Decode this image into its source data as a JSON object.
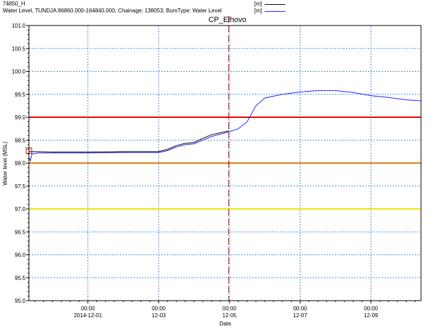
{
  "legend": {
    "entries": [
      {
        "name": "74850_H",
        "unit": "[m]",
        "color": "#000000"
      },
      {
        "name": "Water Level, TUNDJA 86860.000-164840.000; Chainage: 138053; BumType: Water Level",
        "unit": "[m]",
        "color": "#2020ff"
      }
    ]
  },
  "chart_data": {
    "type": "line",
    "title": "CP_Elhovo",
    "xlabel": "Date",
    "ylabel": "Water level (MSL)",
    "ylim": [
      95.0,
      101.0
    ],
    "xlim": [
      "2014-11-29T08:00",
      "2014-12-10T10:00"
    ],
    "y_ticks": [
      "95.0",
      "95.5",
      "96.0",
      "96.5",
      "97.0",
      "97.5",
      "98.0",
      "98.5",
      "99.0",
      "99.5",
      "100.0",
      "100.5",
      "101.0"
    ],
    "x_ticks": [
      {
        "x": "2014-12-01T00:00",
        "time": "00:00",
        "date": "2014-12-01"
      },
      {
        "x": "2014-12-03T00:00",
        "time": "00:00",
        "date": "12-03"
      },
      {
        "x": "2014-12-05T00:00",
        "time": "00:00",
        "date": "12-05"
      },
      {
        "x": "2014-12-07T00:00",
        "time": "00:00",
        "date": "12-07"
      },
      {
        "x": "2014-12-09T00:00",
        "time": "00:00",
        "date": "12-09"
      }
    ],
    "grid": true,
    "threshold_lines": [
      {
        "y": 99.0,
        "color": "#e00000"
      },
      {
        "y": 98.0,
        "color": "#e07000"
      },
      {
        "y": 97.0,
        "color": "#e8e800"
      }
    ],
    "current_time_marker": {
      "x": "2014-12-04T23:30",
      "color": "#d00000"
    },
    "series": [
      {
        "name": "74850_H",
        "color": "#000000",
        "points": [
          [
            "2014-11-29T08:00",
            98.25
          ],
          [
            "2014-11-29T12:00",
            98.25
          ],
          [
            "2014-11-30T00:00",
            98.24
          ],
          [
            "2014-12-01T00:00",
            98.24
          ],
          [
            "2014-12-02T00:00",
            98.25
          ],
          [
            "2014-12-03T00:00",
            98.25
          ],
          [
            "2014-12-03T06:00",
            98.3
          ],
          [
            "2014-12-03T12:00",
            98.38
          ],
          [
            "2014-12-03T18:00",
            98.43
          ],
          [
            "2014-12-04T00:00",
            98.45
          ],
          [
            "2014-12-04T06:00",
            98.54
          ],
          [
            "2014-12-04T12:00",
            98.62
          ],
          [
            "2014-12-04T23:30",
            98.7
          ]
        ]
      },
      {
        "name": "Water Level, TUNDJA 86860.000-164840.000; Chainage: 138053; BumType: Water Level",
        "color": "#2020ff",
        "points": [
          [
            "2014-11-29T08:00",
            98.12
          ],
          [
            "2014-11-29T09:00",
            98.05
          ],
          [
            "2014-11-29T10:00",
            98.2
          ],
          [
            "2014-11-29T14:00",
            98.22
          ],
          [
            "2014-11-30T00:00",
            98.22
          ],
          [
            "2014-12-01T00:00",
            98.22
          ],
          [
            "2014-12-02T00:00",
            98.23
          ],
          [
            "2014-12-03T00:00",
            98.23
          ],
          [
            "2014-12-03T06:00",
            98.27
          ],
          [
            "2014-12-03T12:00",
            98.35
          ],
          [
            "2014-12-03T18:00",
            98.4
          ],
          [
            "2014-12-04T00:00",
            98.42
          ],
          [
            "2014-12-04T06:00",
            98.5
          ],
          [
            "2014-12-04T12:00",
            98.58
          ],
          [
            "2014-12-04T23:30",
            98.68
          ],
          [
            "2014-12-05T06:00",
            98.75
          ],
          [
            "2014-12-05T12:00",
            98.9
          ],
          [
            "2014-12-05T18:00",
            99.25
          ],
          [
            "2014-12-06T00:00",
            99.42
          ],
          [
            "2014-12-06T12:00",
            99.5
          ],
          [
            "2014-12-07T00:00",
            99.55
          ],
          [
            "2014-12-07T12:00",
            99.58
          ],
          [
            "2014-12-08T00:00",
            99.58
          ],
          [
            "2014-12-08T12:00",
            99.54
          ],
          [
            "2014-12-09T00:00",
            99.47
          ],
          [
            "2014-12-09T12:00",
            99.43
          ],
          [
            "2014-12-10T00:00",
            99.38
          ],
          [
            "2014-12-10T10:00",
            99.36
          ]
        ]
      }
    ],
    "start_marker": {
      "x": "2014-11-29T08:00",
      "y": 98.27
    }
  }
}
